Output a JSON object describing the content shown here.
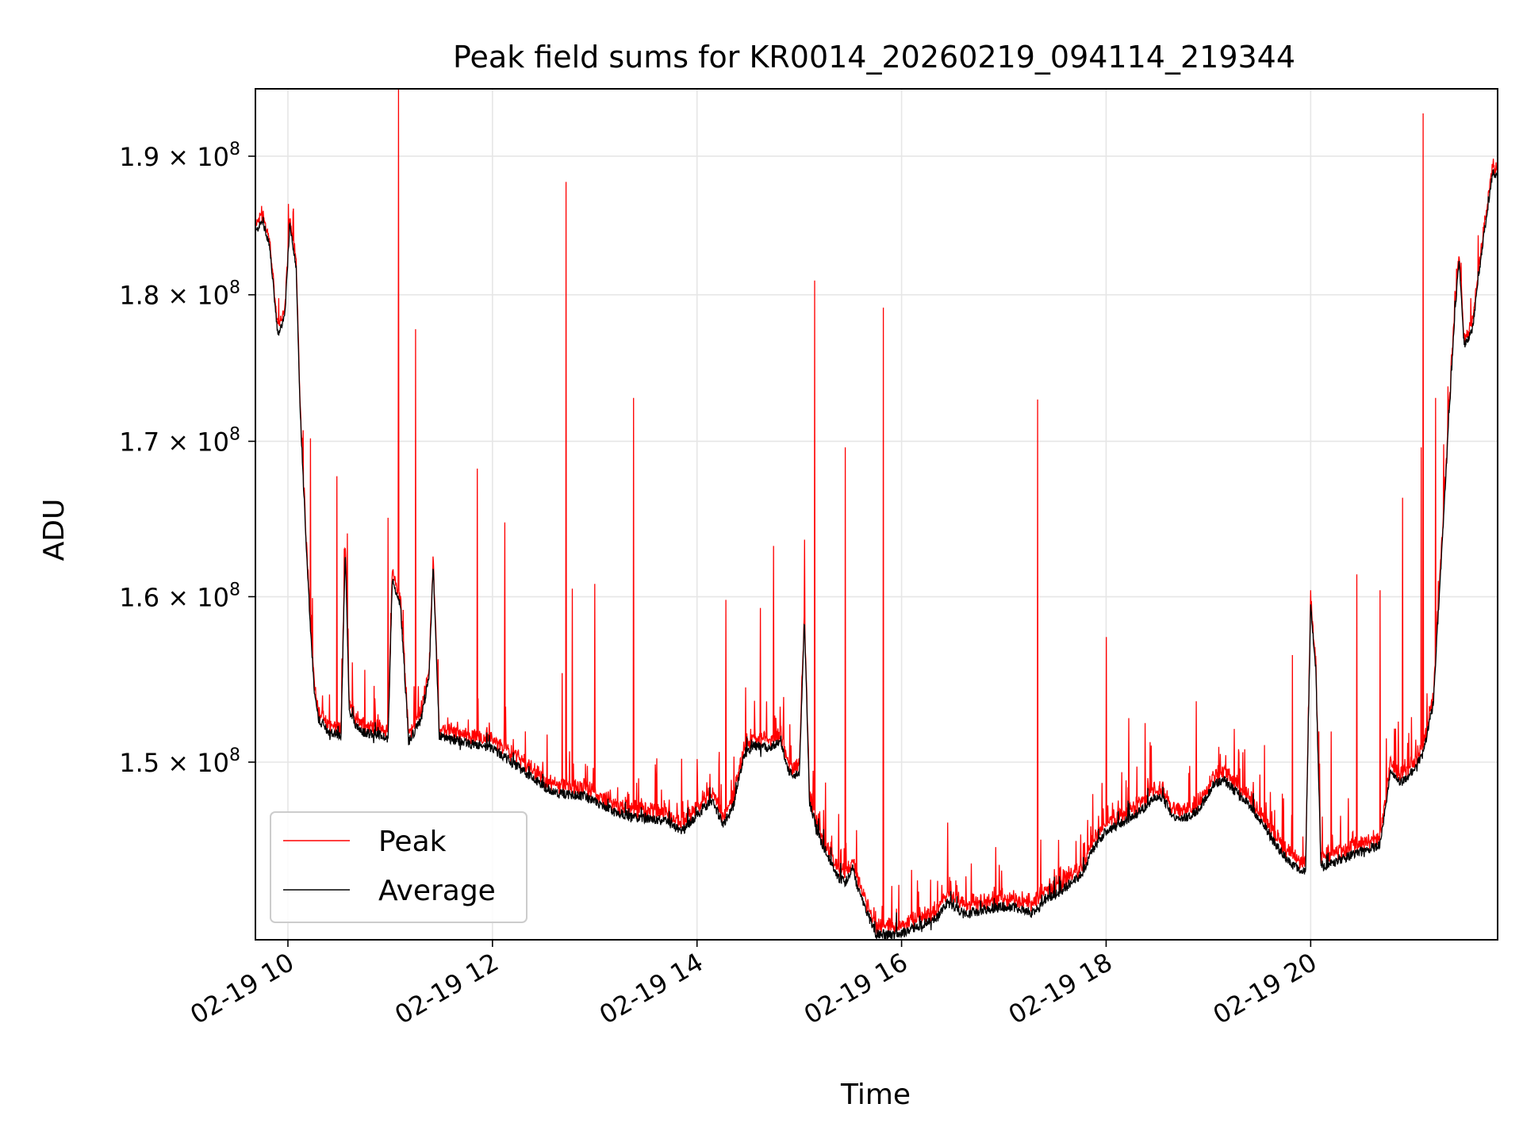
{
  "chart_data": {
    "type": "line",
    "title": "Peak field sums for KR0014_20260219_094114_219344",
    "xlabel": "Time",
    "ylabel": "ADU",
    "scale": "log",
    "xlim": [
      9.69,
      21.82
    ],
    "ylim": [
      140000000,
      195000000
    ],
    "grid": true,
    "legend_position": "lower-left",
    "x_ticks": [
      {
        "value": 10,
        "label": "02-19 10"
      },
      {
        "value": 12,
        "label": "02-19 12"
      },
      {
        "value": 14,
        "label": "02-19 14"
      },
      {
        "value": 16,
        "label": "02-19 16"
      },
      {
        "value": 18,
        "label": "02-19 18"
      },
      {
        "value": 20,
        "label": "02-19 20"
      }
    ],
    "y_ticks": [
      {
        "value": 150000000,
        "mantissa": "1.5",
        "times": "×",
        "base": "10",
        "exp": "8"
      },
      {
        "value": 160000000,
        "mantissa": "1.6",
        "times": "×",
        "base": "10",
        "exp": "8"
      },
      {
        "value": 170000000,
        "mantissa": "1.7",
        "times": "×",
        "base": "10",
        "exp": "8"
      },
      {
        "value": 180000000,
        "mantissa": "1.8",
        "times": "×",
        "base": "10",
        "exp": "8"
      },
      {
        "value": 190000000,
        "mantissa": "1.9",
        "times": "×",
        "base": "10",
        "exp": "8"
      }
    ],
    "series": [
      {
        "name": "Peak",
        "color": "#ff0000"
      },
      {
        "name": "Average",
        "color": "#000000"
      }
    ],
    "average_trend": [
      [
        9.69,
        184.5
      ],
      [
        9.75,
        185.3
      ],
      [
        9.82,
        183.5
      ],
      [
        9.9,
        177.2
      ],
      [
        9.97,
        178.5
      ],
      [
        10.02,
        185.0
      ],
      [
        10.08,
        182.0
      ],
      [
        10.12,
        172.0
      ],
      [
        10.18,
        163.0
      ],
      [
        10.22,
        158.0
      ],
      [
        10.26,
        154.0
      ],
      [
        10.3,
        152.5
      ],
      [
        10.4,
        151.8
      ],
      [
        10.52,
        151.6
      ],
      [
        10.56,
        163.0
      ],
      [
        10.6,
        153.0
      ],
      [
        10.7,
        151.8
      ],
      [
        10.9,
        151.6
      ],
      [
        10.98,
        151.4
      ],
      [
        11.02,
        161.0
      ],
      [
        11.1,
        159.5
      ],
      [
        11.18,
        151.2
      ],
      [
        11.3,
        152.5
      ],
      [
        11.38,
        155.0
      ],
      [
        11.42,
        162.0
      ],
      [
        11.48,
        151.5
      ],
      [
        11.7,
        151.2
      ],
      [
        12.0,
        150.8
      ],
      [
        12.3,
        149.5
      ],
      [
        12.6,
        148.2
      ],
      [
        12.9,
        148.0
      ],
      [
        13.2,
        147.1
      ],
      [
        13.4,
        146.8
      ],
      [
        13.7,
        146.6
      ],
      [
        13.85,
        146.0
      ],
      [
        14.0,
        146.9
      ],
      [
        14.15,
        147.8
      ],
      [
        14.25,
        146.4
      ],
      [
        14.35,
        147.3
      ],
      [
        14.45,
        150.2
      ],
      [
        14.55,
        151.0
      ],
      [
        14.7,
        150.8
      ],
      [
        14.82,
        151.3
      ],
      [
        14.88,
        149.6
      ],
      [
        14.95,
        149.2
      ],
      [
        15.0,
        149.3
      ],
      [
        15.05,
        158.5
      ],
      [
        15.1,
        147.6
      ],
      [
        15.2,
        145.6
      ],
      [
        15.3,
        144.4
      ],
      [
        15.38,
        143.4
      ],
      [
        15.45,
        143.1
      ],
      [
        15.52,
        144.0
      ],
      [
        15.58,
        142.6
      ],
      [
        15.68,
        141.2
      ],
      [
        15.75,
        140.3
      ],
      [
        15.9,
        140.2
      ],
      [
        16.05,
        140.4
      ],
      [
        16.2,
        140.8
      ],
      [
        16.35,
        141.2
      ],
      [
        16.45,
        142.0
      ],
      [
        16.6,
        141.4
      ],
      [
        16.75,
        141.5
      ],
      [
        16.9,
        141.7
      ],
      [
        17.05,
        141.8
      ],
      [
        17.2,
        141.6
      ],
      [
        17.3,
        141.4
      ],
      [
        17.4,
        142.2
      ],
      [
        17.55,
        142.6
      ],
      [
        17.75,
        143.5
      ],
      [
        17.9,
        145.3
      ],
      [
        18.0,
        146.0
      ],
      [
        18.15,
        146.5
      ],
      [
        18.3,
        147.0
      ],
      [
        18.45,
        147.8
      ],
      [
        18.55,
        148.0
      ],
      [
        18.65,
        146.9
      ],
      [
        18.75,
        146.7
      ],
      [
        18.9,
        147.2
      ],
      [
        19.05,
        148.7
      ],
      [
        19.15,
        149.0
      ],
      [
        19.25,
        148.4
      ],
      [
        19.4,
        147.5
      ],
      [
        19.55,
        146.3
      ],
      [
        19.65,
        145.3
      ],
      [
        19.8,
        144.2
      ],
      [
        19.95,
        143.7
      ],
      [
        20.0,
        159.5
      ],
      [
        20.05,
        155.5
      ],
      [
        20.1,
        143.9
      ],
      [
        20.25,
        144.3
      ],
      [
        20.4,
        144.7
      ],
      [
        20.55,
        145.0
      ],
      [
        20.68,
        145.2
      ],
      [
        20.78,
        149.5
      ],
      [
        20.88,
        148.8
      ],
      [
        21.0,
        149.5
      ],
      [
        21.1,
        150.5
      ],
      [
        21.2,
        153.5
      ],
      [
        21.3,
        165.0
      ],
      [
        21.4,
        177.5
      ],
      [
        21.45,
        182.5
      ],
      [
        21.5,
        176.5
      ],
      [
        21.58,
        177.5
      ],
      [
        21.68,
        183.5
      ],
      [
        21.78,
        188.8
      ],
      [
        21.82,
        188.5
      ]
    ],
    "peak_spikes": [
      [
        10.05,
        185.9
      ],
      [
        10.22,
        170.2
      ],
      [
        10.48,
        167.7
      ],
      [
        10.58,
        164.0
      ],
      [
        10.75,
        155.5
      ],
      [
        10.98,
        165.0
      ],
      [
        11.08,
        195.0
      ],
      [
        11.25,
        177.6
      ],
      [
        11.85,
        168.2
      ],
      [
        12.12,
        164.7
      ],
      [
        12.68,
        155.3
      ],
      [
        12.72,
        188.1
      ],
      [
        12.78,
        160.5
      ],
      [
        13.0,
        160.8
      ],
      [
        13.38,
        172.9
      ],
      [
        13.85,
        150.2
      ],
      [
        14.28,
        159.8
      ],
      [
        14.62,
        159.3
      ],
      [
        14.75,
        163.2
      ],
      [
        15.05,
        163.6
      ],
      [
        15.15,
        181.0
      ],
      [
        15.45,
        169.6
      ],
      [
        15.82,
        179.1
      ],
      [
        16.45,
        146.5
      ],
      [
        17.33,
        172.8
      ],
      [
        18.0,
        157.5
      ],
      [
        18.22,
        152.6
      ],
      [
        18.38,
        152.3
      ],
      [
        18.88,
        153.6
      ],
      [
        19.55,
        151.0
      ],
      [
        19.82,
        156.4
      ],
      [
        20.0,
        160.4
      ],
      [
        20.2,
        151.8
      ],
      [
        20.45,
        161.4
      ],
      [
        20.68,
        160.4
      ],
      [
        20.9,
        166.3
      ],
      [
        21.08,
        169.6
      ],
      [
        21.1,
        193.2
      ],
      [
        21.22,
        172.9
      ],
      [
        21.3,
        169.8
      ]
    ]
  }
}
